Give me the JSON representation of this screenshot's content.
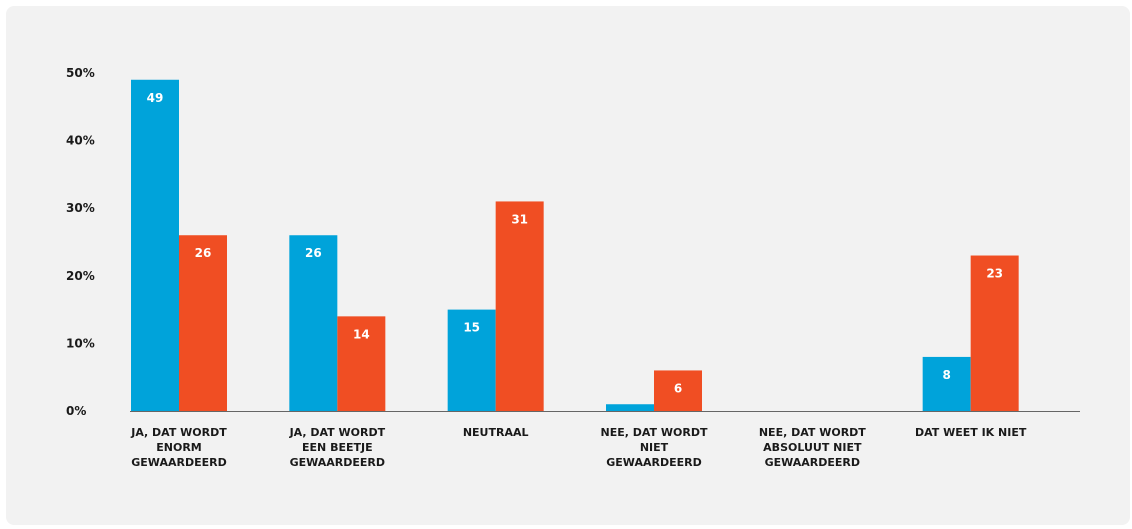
{
  "colors": {
    "series_a": "#00a3da",
    "series_b": "#f04e23",
    "axis": "#666666",
    "background": "#f2f2f2"
  },
  "chart_data": {
    "type": "bar",
    "title": "",
    "xlabel": "",
    "ylabel": "",
    "ylim": [
      0,
      50
    ],
    "yticks": [
      "0%",
      "10%",
      "20%",
      "30%",
      "40%",
      "50%"
    ],
    "grid": false,
    "categories": [
      [
        "JA, DAT WORDT",
        "ENORM",
        "GEWAARDEERD"
      ],
      [
        "JA, DAT WORDT",
        "EEN BEETJE",
        "GEWAARDEERD"
      ],
      [
        "NEUTRAAL"
      ],
      [
        "NEE, DAT WORDT",
        "NIET",
        "GEWAARDEERD"
      ],
      [
        "NEE, DAT WORDT",
        "ABSOLUUT NIET",
        "GEWAARDEERD"
      ],
      [
        "DAT WEET IK NIET"
      ]
    ],
    "series": [
      {
        "values": [
          49,
          26,
          15,
          1,
          0,
          8
        ],
        "labels": [
          "49",
          "26",
          "15",
          "",
          "",
          "8"
        ],
        "color": "#00a3da"
      },
      {
        "values": [
          26,
          14,
          31,
          6,
          0,
          23
        ],
        "labels": [
          "26",
          "14",
          "31",
          "6",
          "",
          "23"
        ],
        "color": "#f04e23"
      }
    ]
  }
}
